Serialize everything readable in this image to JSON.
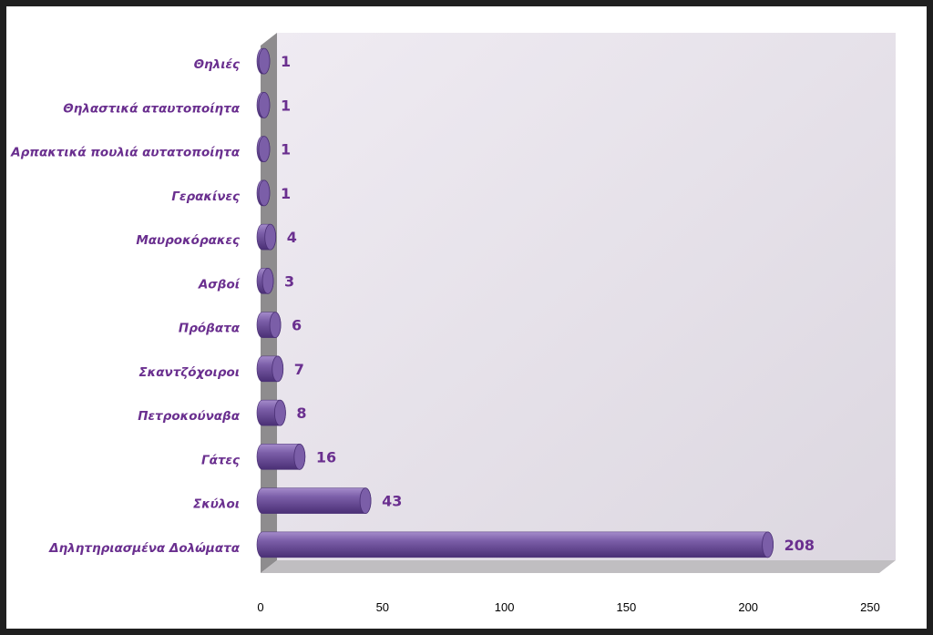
{
  "chart_data": {
    "type": "bar",
    "orientation": "horizontal",
    "style": "3d-cylinder",
    "categories": [
      "Δηλητηριασμένα Δολώματα",
      "Σκύλοι",
      "Γάτες",
      "Πετροκούναβα",
      "Σκαντζόχοιροι",
      "Πρόβατα",
      "Ασβοί",
      "Μαυροκόρακες",
      "Γερακίνες",
      "Αρπακτικά πουλιά αυτατοποίητα",
      "Θηλαστικά αταυτοποίητα",
      "Θηλιές"
    ],
    "values": [
      208,
      43,
      16,
      8,
      7,
      6,
      3,
      4,
      1,
      1,
      1,
      1
    ],
    "value_labels": [
      "208",
      "43",
      "16",
      "8",
      "7",
      "6",
      "3",
      "4",
      "1",
      "1",
      "1",
      "1"
    ],
    "xlim": [
      0,
      250
    ],
    "xticks": [
      0,
      50,
      100,
      150,
      200,
      250
    ],
    "xtick_labels": [
      "0",
      "50",
      "100",
      "150",
      "200",
      "250"
    ],
    "title": "",
    "xlabel": "",
    "ylabel": "",
    "grid": false,
    "legend": "none",
    "colors": {
      "bar": "#7b5ea8",
      "bar_light": "#a58ccb",
      "bar_dark": "#4a2f75",
      "labels": "#6a2f8f",
      "back_wall": "#e9e4ee",
      "side_wall": "#8e8c8e",
      "floor": "#c0bec1",
      "frame": "#1f1f1f"
    }
  }
}
